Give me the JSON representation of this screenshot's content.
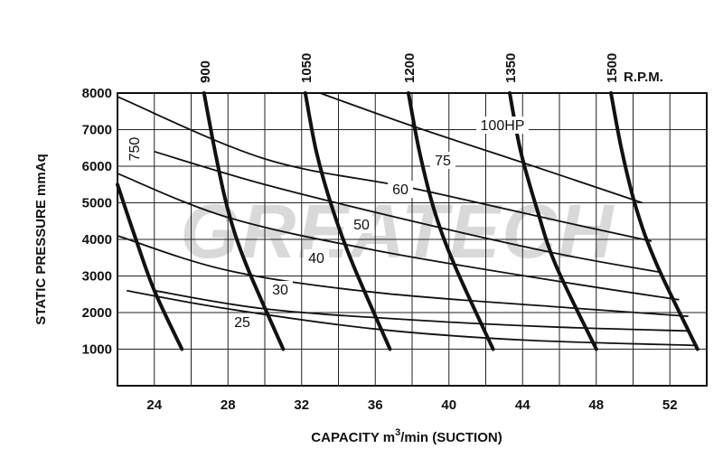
{
  "chart_data": {
    "type": "line",
    "title": "",
    "xlabel_prefix": "CAPACITY  m",
    "xlabel_sup": "3",
    "xlabel_suffix": "/min  (SUCTION)",
    "ylabel": "STATIC  PRESSURE  mmAq",
    "rpm_axis_label": "R.P.M.",
    "xlim": [
      22,
      54
    ],
    "ylim": [
      0,
      8000
    ],
    "x_ticks": [
      24,
      28,
      32,
      36,
      40,
      44,
      48,
      52
    ],
    "y_ticks": [
      1000,
      2000,
      3000,
      4000,
      5000,
      6000,
      7000,
      8000
    ],
    "grid": true,
    "watermark": "GREATECH",
    "rpm_series": [
      {
        "name": "750",
        "points": [
          [
            22.0,
            5500
          ],
          [
            23.0,
            4000
          ],
          [
            24.0,
            2600
          ],
          [
            25.5,
            1000
          ]
        ]
      },
      {
        "name": "900",
        "points": [
          [
            26.7,
            8000
          ],
          [
            27.3,
            6400
          ],
          [
            28.0,
            4800
          ],
          [
            29.0,
            3300
          ],
          [
            31.0,
            1000
          ]
        ]
      },
      {
        "name": "1050",
        "points": [
          [
            32.2,
            8000
          ],
          [
            32.8,
            6400
          ],
          [
            33.7,
            4800
          ],
          [
            34.8,
            3300
          ],
          [
            36.8,
            1000
          ]
        ]
      },
      {
        "name": "1200",
        "points": [
          [
            37.8,
            8000
          ],
          [
            38.4,
            6400
          ],
          [
            39.2,
            4800
          ],
          [
            40.3,
            3300
          ],
          [
            42.4,
            1000
          ]
        ]
      },
      {
        "name": "1350",
        "points": [
          [
            43.3,
            8000
          ],
          [
            43.9,
            6400
          ],
          [
            44.8,
            4800
          ],
          [
            45.8,
            3300
          ],
          [
            48.0,
            1000
          ]
        ]
      },
      {
        "name": "1500",
        "points": [
          [
            48.8,
            8000
          ],
          [
            49.4,
            6400
          ],
          [
            50.2,
            4800
          ],
          [
            51.3,
            3300
          ],
          [
            53.5,
            1000
          ]
        ]
      }
    ],
    "hp_series": [
      {
        "name": "25",
        "label": "25",
        "points": [
          [
            22.5,
            2600
          ],
          [
            28.0,
            2100
          ],
          [
            36.0,
            1550
          ],
          [
            44.0,
            1250
          ],
          [
            53.5,
            1100
          ]
        ]
      },
      {
        "name": "30",
        "label": "30",
        "points": [
          [
            24.0,
            2600
          ],
          [
            30.0,
            2100
          ],
          [
            38.0,
            1800
          ],
          [
            46.0,
            1600
          ],
          [
            53.0,
            1500
          ]
        ]
      },
      {
        "name": "40",
        "label": "40",
        "points": [
          [
            22.0,
            4100
          ],
          [
            28.0,
            3150
          ],
          [
            36.0,
            2550
          ],
          [
            46.0,
            2150
          ],
          [
            53.0,
            1900
          ]
        ]
      },
      {
        "name": "50",
        "label": "50",
        "points": [
          [
            22.0,
            5800
          ],
          [
            28.0,
            4600
          ],
          [
            36.0,
            3700
          ],
          [
            46.0,
            2850
          ],
          [
            52.5,
            2350
          ]
        ]
      },
      {
        "name": "60",
        "label": "60",
        "points": [
          [
            24.0,
            6400
          ],
          [
            30.0,
            5500
          ],
          [
            38.0,
            4500
          ],
          [
            46.0,
            3600
          ],
          [
            51.5,
            3100
          ]
        ]
      },
      {
        "name": "75",
        "label": "75",
        "points": [
          [
            22.0,
            7900
          ],
          [
            30.0,
            6200
          ],
          [
            38.0,
            5400
          ],
          [
            46.0,
            4500
          ],
          [
            51.0,
            3950
          ]
        ]
      },
      {
        "name": "100HP",
        "label": "100HP",
        "points": [
          [
            33.0,
            8000
          ],
          [
            38.0,
            7100
          ],
          [
            44.0,
            6100
          ],
          [
            50.5,
            5000
          ]
        ]
      }
    ]
  }
}
